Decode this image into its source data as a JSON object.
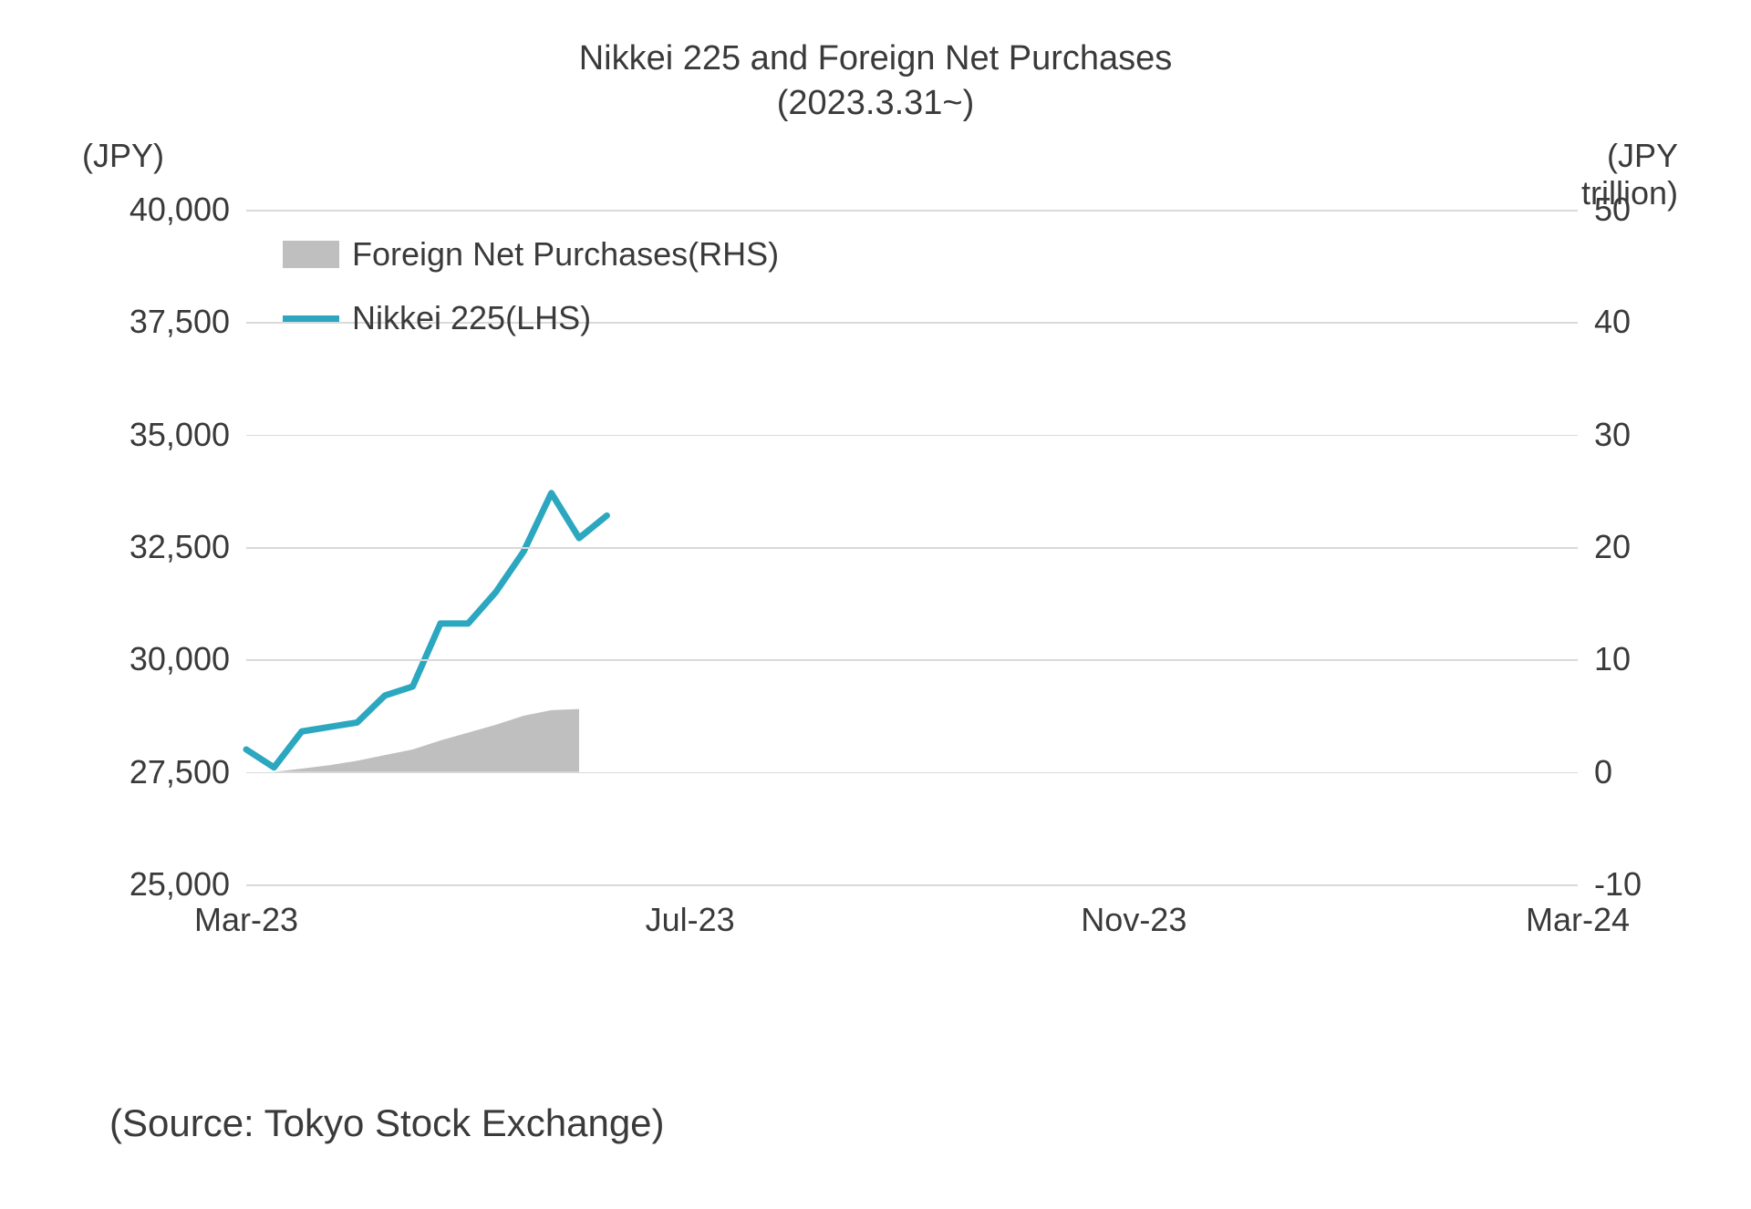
{
  "chart": {
    "type": "line+area",
    "title_line1": "Nikkei 225 and Foreign Net Purchases",
    "title_line2": "(2023.3.31~)",
    "title_fontsize": 38,
    "title_color": "#3a3a3a",
    "background_color": "#ffffff",
    "grid_color": "#d9d9d9",
    "axis_left": {
      "label": "(JPY)",
      "min": 25000,
      "max": 40000,
      "tick_step": 2500,
      "ticks": [
        "40,000",
        "37,500",
        "35,000",
        "32,500",
        "30,000",
        "27,500",
        "25,000"
      ],
      "tick_values": [
        40000,
        37500,
        35000,
        32500,
        30000,
        27500,
        25000
      ],
      "fontsize": 36,
      "color": "#3a3a3a"
    },
    "axis_right": {
      "label_line1": "(JPY",
      "label_line2": "trillion)",
      "min": -10,
      "max": 50,
      "tick_step": 10,
      "ticks": [
        "50",
        "40",
        "30",
        "20",
        "10",
        "0",
        "-10"
      ],
      "tick_values": [
        50,
        40,
        30,
        20,
        10,
        0,
        -10
      ],
      "fontsize": 36,
      "color": "#3a3a3a"
    },
    "axis_x": {
      "min": 0,
      "max": 12,
      "ticks": [
        "Mar-23",
        "Jul-23",
        "Nov-23",
        "Mar-24"
      ],
      "tick_positions": [
        0,
        4,
        8,
        12
      ],
      "fontsize": 36,
      "color": "#3a3a3a"
    },
    "series": {
      "foreign_net_purchases": {
        "type": "area",
        "label": "Foreign Net Purchases(RHS)",
        "color": "#bfbfbf",
        "opacity": 1.0,
        "axis": "right",
        "x": [
          0.0,
          0.25,
          0.5,
          0.75,
          1.0,
          1.25,
          1.5,
          1.75,
          2.0,
          2.25,
          2.5,
          2.75,
          3.0
        ],
        "y": [
          0.0,
          0.0,
          0.3,
          0.6,
          1.0,
          1.5,
          2.0,
          2.8,
          3.5,
          4.2,
          5.0,
          5.5,
          5.6
        ]
      },
      "nikkei_225": {
        "type": "line",
        "label": "Nikkei 225(LHS)",
        "color": "#2ba7c0",
        "line_width": 7,
        "axis": "left",
        "x": [
          0.0,
          0.25,
          0.5,
          0.75,
          1.0,
          1.25,
          1.5,
          1.75,
          2.0,
          2.25,
          2.5,
          2.75,
          3.0,
          3.25
        ],
        "y": [
          28000,
          27600,
          28400,
          28500,
          28600,
          29200,
          29400,
          30800,
          30800,
          31500,
          32400,
          33700,
          32700,
          33200
        ]
      }
    },
    "legend": {
      "position": "top-left-inside",
      "fontsize": 36,
      "items": [
        {
          "key": "foreign_net_purchases",
          "swatch_type": "area"
        },
        {
          "key": "nikkei_225",
          "swatch_type": "line"
        }
      ]
    }
  },
  "source": {
    "text": "(Source: Tokyo Stock Exchange)",
    "fontsize": 42,
    "color": "#3a3a3a"
  }
}
